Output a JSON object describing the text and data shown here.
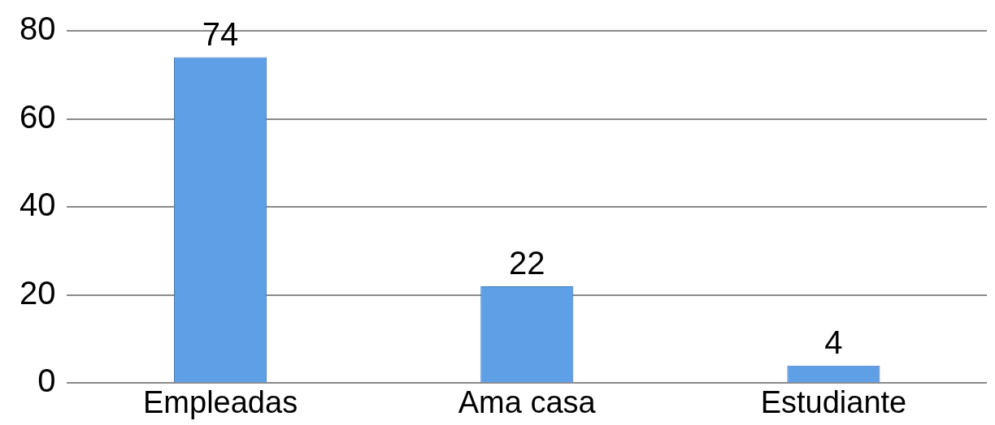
{
  "chart_data": {
    "type": "bar",
    "categories": [
      "Empleadas",
      "Ama casa",
      "Estudiante"
    ],
    "values": [
      74,
      22,
      4
    ],
    "color": "#5f9fe6",
    "ylim": [
      0,
      80
    ],
    "yticks": [
      0,
      20,
      40,
      60,
      80
    ],
    "grid": "y",
    "data_labels": true
  }
}
